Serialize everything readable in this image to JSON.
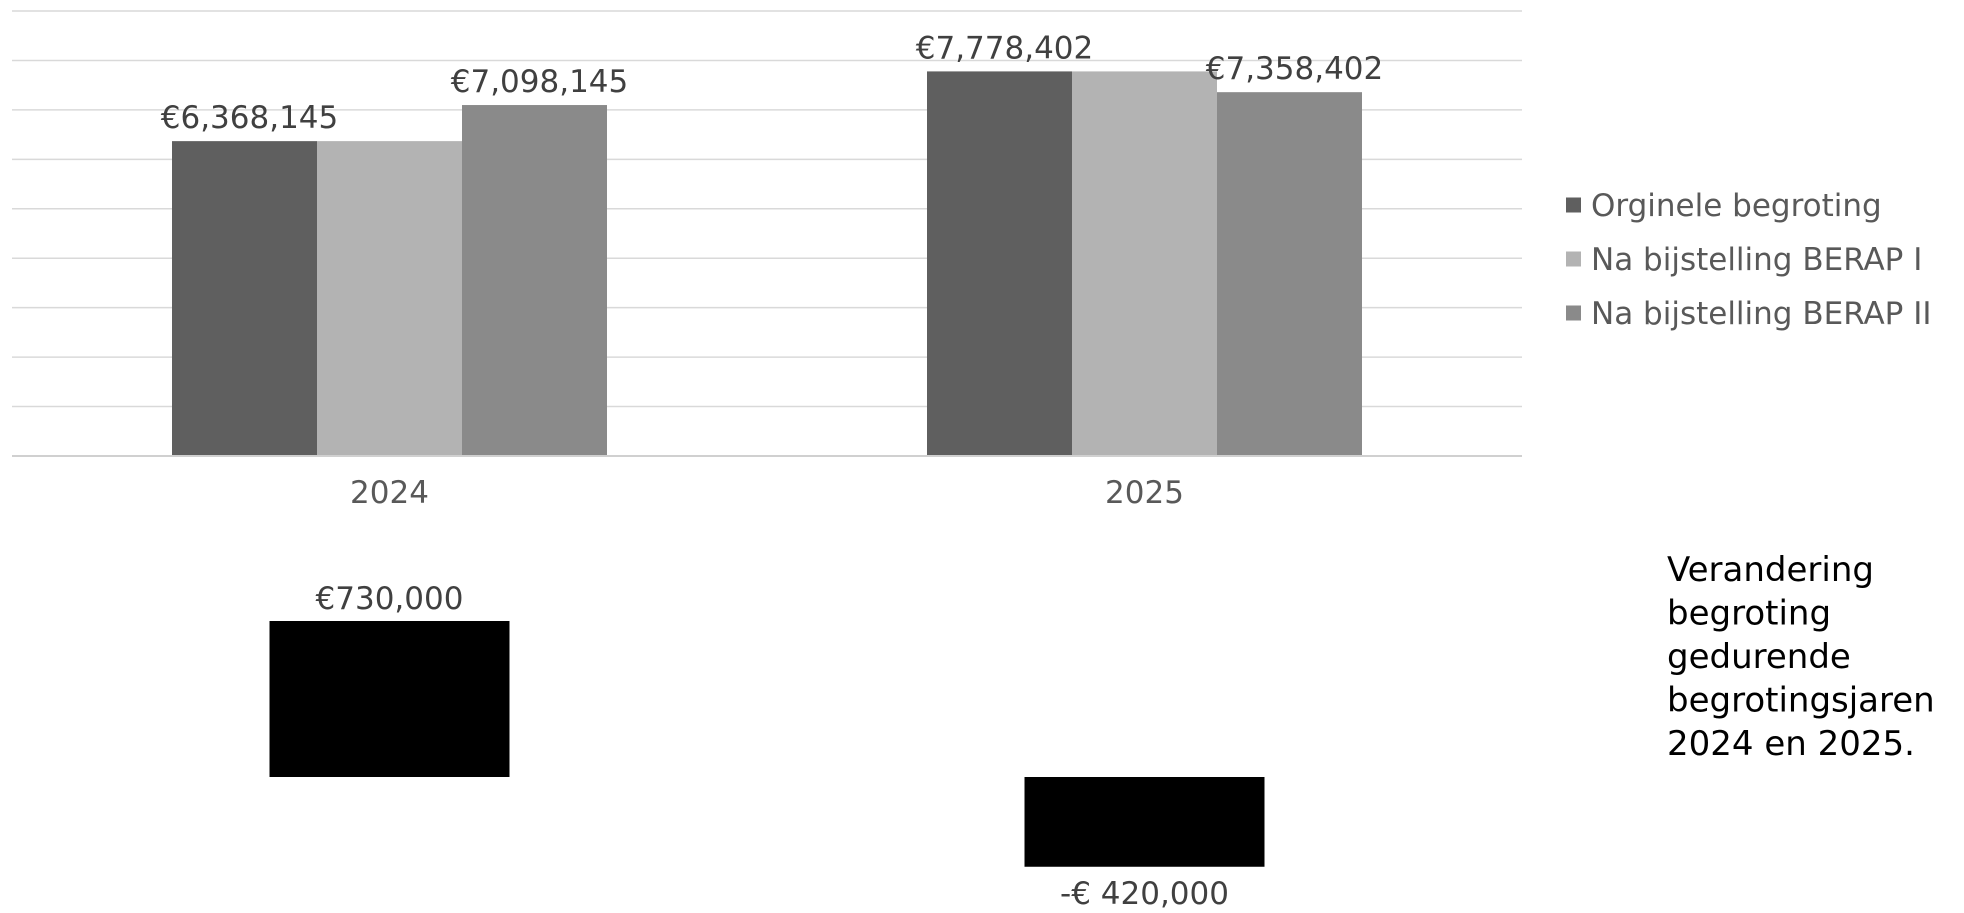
{
  "chart_data": [
    {
      "type": "bar",
      "categories": [
        "2024",
        "2025"
      ],
      "series": [
        {
          "name": "Orginele begroting",
          "color": "#5f5f5f",
          "values": [
            6368145,
            7778402
          ]
        },
        {
          "name": "Na bijstelling BERAP I",
          "color": "#b3b3b3",
          "values": [
            6368145,
            7778402
          ]
        },
        {
          "name": "Na bijstelling BERAP II",
          "color": "#8a8a8a",
          "values": [
            7098145,
            7358402
          ]
        }
      ],
      "data_labels": [
        {
          "category": "2024",
          "series": "Orginele begroting",
          "text": "€6,368,145"
        },
        {
          "category": "2024",
          "series": "Na bijstelling BERAP II",
          "text": "€7,098,145"
        },
        {
          "category": "2025",
          "series": "Orginele begroting",
          "text": "€7,778,402"
        },
        {
          "category": "2025",
          "series": "Na bijstelling BERAP II",
          "text": "€7,358,402"
        }
      ],
      "ylim": [
        0,
        9000000
      ],
      "grid": true,
      "legend": "right"
    },
    {
      "type": "bar",
      "categories": [
        "2024",
        "2025"
      ],
      "values": [
        730000,
        -420000
      ],
      "color": "#000000",
      "value_labels": [
        "€730,000",
        "-€ 420,000"
      ]
    }
  ],
  "caption_lines": [
    "Verandering",
    "begroting",
    "gedurende",
    "begrotingsjaren",
    "2024 en 2025."
  ]
}
